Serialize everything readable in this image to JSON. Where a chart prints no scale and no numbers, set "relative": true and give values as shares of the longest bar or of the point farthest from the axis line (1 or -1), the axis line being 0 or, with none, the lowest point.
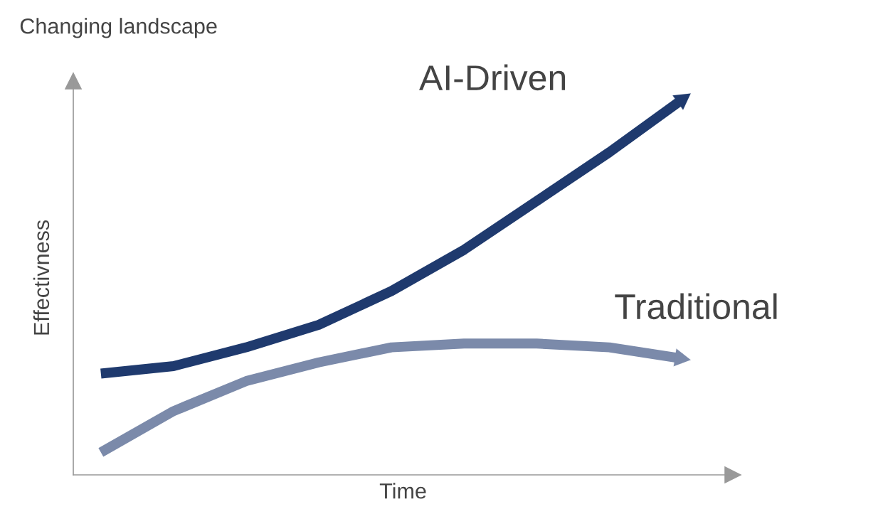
{
  "chart_data": {
    "type": "line",
    "title": "Changing landscape",
    "xlabel": "Time",
    "ylabel": "Effectivness",
    "relative": true,
    "categories": [
      null,
      null,
      null,
      null,
      null,
      null,
      null,
      null,
      null
    ],
    "series": [
      {
        "name": "AI-Driven",
        "color": "#1f3a6e",
        "values": [
          0.27,
          0.29,
          0.34,
          0.4,
          0.49,
          0.6,
          0.73,
          0.86,
          1
        ]
      },
      {
        "name": "Traditional",
        "color": "#7b8aaa",
        "values": [
          0.06,
          0.17,
          0.25,
          0.3,
          0.34,
          0.35,
          0.35,
          0.34,
          0.31
        ]
      }
    ],
    "legend": false,
    "grid": false,
    "marker": "none",
    "line_style": "solid"
  }
}
